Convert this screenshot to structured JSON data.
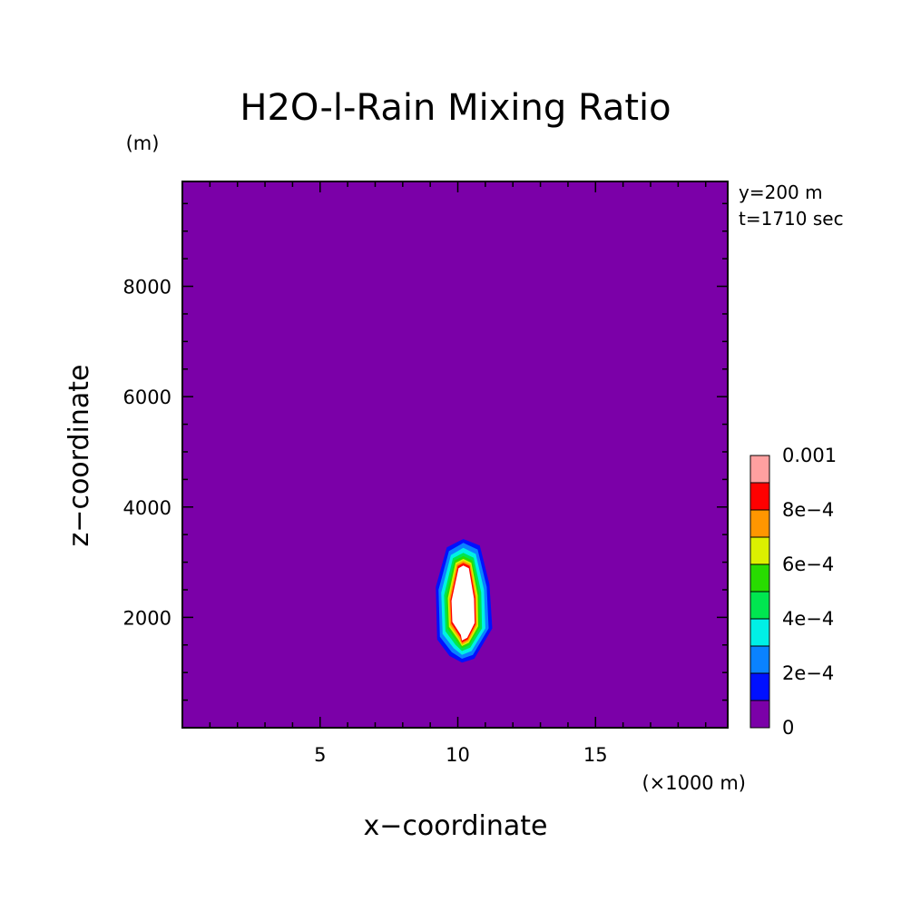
{
  "chart_data": {
    "type": "contour",
    "title": "H2O-l-Rain Mixing Ratio",
    "xlabel": "x−coordinate",
    "ylabel": "z−coordinate",
    "x_unit": "(×1000 m)",
    "y_unit": "(m)",
    "info": [
      "y=200 m",
      "t=1710 sec"
    ],
    "xlim": [
      0,
      19.8
    ],
    "ylim": [
      0,
      9900
    ],
    "xticks": [
      {
        "value": 5,
        "label": "5"
      },
      {
        "value": 10,
        "label": "10"
      },
      {
        "value": 15,
        "label": "15"
      }
    ],
    "yticks": [
      {
        "value": 2000,
        "label": "2000"
      },
      {
        "value": 4000,
        "label": "4000"
      },
      {
        "value": 6000,
        "label": "6000"
      },
      {
        "value": 8000,
        "label": "8000"
      }
    ],
    "background_color": "#7b00a8",
    "colorbar": {
      "min": 0,
      "max": 0.001,
      "step": 0.0001,
      "colors": [
        "#7b00a8",
        "#0010ff",
        "#0a82ff",
        "#00f0e6",
        "#00e650",
        "#28dc00",
        "#dcf000",
        "#ff9600",
        "#ff0000",
        "#ffa0a0"
      ],
      "labels": [
        {
          "value": 0,
          "label": "0"
        },
        {
          "value": 0.0002,
          "label": "2e−4"
        },
        {
          "value": 0.0004,
          "label": "4e−4"
        },
        {
          "value": 0.0006,
          "label": "6e−4"
        },
        {
          "value": 0.0008,
          "label": "8e−4"
        },
        {
          "value": 0.001,
          "label": "0.001"
        }
      ]
    },
    "contours": [
      {
        "level": 0.0001,
        "color": "#0010ff",
        "points": [
          [
            9.25,
            1600
          ],
          [
            9.2,
            2550
          ],
          [
            9.6,
            3270
          ],
          [
            10.2,
            3420
          ],
          [
            10.8,
            3300
          ],
          [
            11.15,
            2600
          ],
          [
            11.25,
            1800
          ],
          [
            10.6,
            1250
          ],
          [
            10.15,
            1180
          ],
          [
            9.7,
            1300
          ]
        ]
      },
      {
        "level": 0.0002,
        "color": "#0a82ff",
        "points": [
          [
            9.35,
            1650
          ],
          [
            9.3,
            2500
          ],
          [
            9.68,
            3200
          ],
          [
            10.2,
            3350
          ],
          [
            10.72,
            3230
          ],
          [
            11.05,
            2550
          ],
          [
            11.12,
            1800
          ],
          [
            10.55,
            1320
          ],
          [
            10.15,
            1250
          ],
          [
            9.78,
            1370
          ]
        ]
      },
      {
        "level": 0.0003,
        "color": "#00f0e6",
        "points": [
          [
            9.45,
            1700
          ],
          [
            9.4,
            2450
          ],
          [
            9.75,
            3130
          ],
          [
            10.2,
            3260
          ],
          [
            10.65,
            3150
          ],
          [
            10.95,
            2500
          ],
          [
            11.0,
            1800
          ],
          [
            10.5,
            1390
          ],
          [
            10.15,
            1320
          ],
          [
            9.85,
            1440
          ]
        ]
      },
      {
        "level": 0.0004,
        "color": "#00e650",
        "points": [
          [
            9.55,
            1750
          ],
          [
            9.5,
            2400
          ],
          [
            9.82,
            3070
          ],
          [
            10.2,
            3170
          ],
          [
            10.58,
            3080
          ],
          [
            10.85,
            2450
          ],
          [
            10.88,
            1800
          ],
          [
            10.45,
            1450
          ],
          [
            10.15,
            1390
          ],
          [
            9.92,
            1500
          ]
        ]
      },
      {
        "level": 0.0005,
        "color": "#28dc00",
        "points": [
          [
            9.62,
            1800
          ],
          [
            9.58,
            2380
          ],
          [
            9.88,
            3030
          ],
          [
            10.2,
            3110
          ],
          [
            10.53,
            3030
          ],
          [
            10.78,
            2420
          ],
          [
            10.8,
            1820
          ],
          [
            10.42,
            1500
          ],
          [
            10.15,
            1440
          ],
          [
            9.98,
            1550
          ]
        ]
      },
      {
        "level": 0.0006,
        "color": "#dcf000",
        "points": [
          [
            9.68,
            1830
          ],
          [
            9.64,
            2350
          ],
          [
            9.92,
            2990
          ],
          [
            10.2,
            3060
          ],
          [
            10.49,
            2990
          ],
          [
            10.72,
            2400
          ],
          [
            10.74,
            1840
          ],
          [
            10.4,
            1540
          ],
          [
            10.15,
            1480
          ],
          [
            10.02,
            1590
          ]
        ]
      },
      {
        "level": 0.0007,
        "color": "#ff9600",
        "points": [
          [
            9.72,
            1860
          ],
          [
            9.69,
            2330
          ],
          [
            9.96,
            2960
          ],
          [
            10.2,
            3020
          ],
          [
            10.46,
            2960
          ],
          [
            10.67,
            2380
          ],
          [
            10.69,
            1860
          ],
          [
            10.38,
            1570
          ],
          [
            10.15,
            1510
          ],
          [
            10.05,
            1620
          ]
        ]
      },
      {
        "level": 0.0008,
        "color": "#ff0000",
        "points": [
          [
            9.76,
            1890
          ],
          [
            9.73,
            2310
          ],
          [
            10.0,
            2930
          ],
          [
            10.2,
            2985
          ],
          [
            10.43,
            2930
          ],
          [
            10.63,
            2360
          ],
          [
            10.65,
            1880
          ],
          [
            10.36,
            1600
          ],
          [
            10.15,
            1545
          ],
          [
            10.08,
            1650
          ]
        ]
      },
      {
        "level": 0.001,
        "color": "#ffffff",
        "points": [
          [
            9.8,
            1920
          ],
          [
            9.77,
            2300
          ],
          [
            10.03,
            2890
          ],
          [
            10.2,
            2940
          ],
          [
            10.4,
            2890
          ],
          [
            10.59,
            2340
          ],
          [
            10.61,
            1900
          ],
          [
            10.34,
            1630
          ],
          [
            10.15,
            1580
          ],
          [
            10.11,
            1680
          ]
        ]
      }
    ]
  }
}
